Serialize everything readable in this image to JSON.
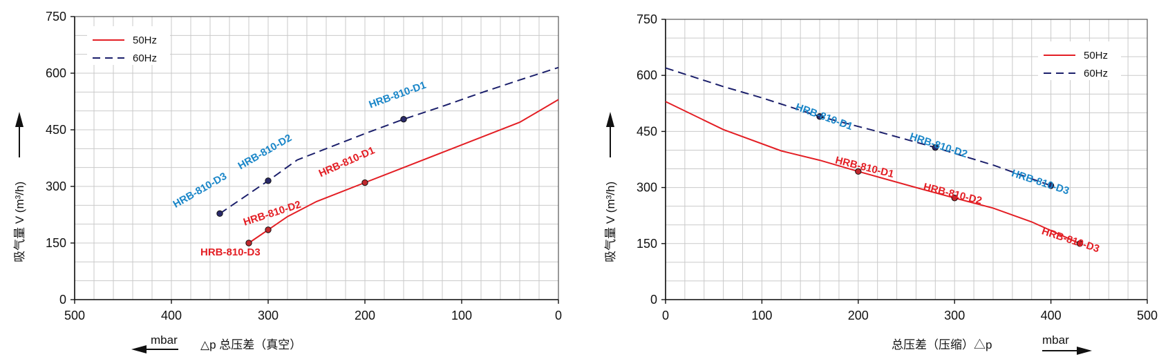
{
  "chart_data": [
    {
      "type": "line",
      "xlim": [
        500,
        0
      ],
      "ylim": [
        0,
        750
      ],
      "x_reversed": true,
      "xticks": [
        500,
        400,
        300,
        200,
        100,
        0
      ],
      "yticks": [
        0,
        150,
        300,
        450,
        600,
        750
      ],
      "ylabel": "吸气量 V (m³/h)",
      "xlabel": "△p 总压差（真空）",
      "xunit": "mbar",
      "grid": true,
      "legend_position": "top-left",
      "series": [
        {
          "name": "50Hz",
          "color": "#e31e24",
          "dash": false,
          "x": [
            320,
            300,
            280,
            250,
            200,
            160,
            120,
            80,
            40,
            20,
            0
          ],
          "y": [
            150,
            185,
            220,
            260,
            310,
            350,
            390,
            430,
            470,
            500,
            530
          ]
        },
        {
          "name": "60Hz",
          "color": "#1b1f6b",
          "dash": true,
          "x": [
            350,
            300,
            270,
            240,
            200,
            160,
            120,
            80,
            40,
            0
          ],
          "y": [
            228,
            315,
            370,
            400,
            440,
            478,
            512,
            548,
            582,
            615
          ]
        }
      ],
      "points": [
        {
          "label": "HRB-810-D3",
          "x": 350,
          "y": 228,
          "color": "#1a86c8"
        },
        {
          "label": "HRB-810-D2",
          "x": 300,
          "y": 315,
          "color": "#1a86c8"
        },
        {
          "label": "HRB-810-D1",
          "x": 160,
          "y": 478,
          "color": "#1a86c8"
        },
        {
          "label": "HRB-810-D3",
          "x": 320,
          "y": 150,
          "color": "#e31e24"
        },
        {
          "label": "HRB-810-D2",
          "x": 300,
          "y": 185,
          "color": "#e31e24"
        },
        {
          "label": "HRB-810-D1",
          "x": 200,
          "y": 310,
          "color": "#e31e24"
        }
      ]
    },
    {
      "type": "line",
      "xlim": [
        0,
        500
      ],
      "ylim": [
        0,
        750
      ],
      "x_reversed": false,
      "xticks": [
        0,
        100,
        200,
        300,
        400,
        500
      ],
      "yticks": [
        0,
        150,
        300,
        450,
        600,
        750
      ],
      "ylabel": "吸气量 V (m³/h)",
      "xlabel": "总压差（压缩）△p",
      "xunit": "mbar",
      "grid": true,
      "legend_position": "top-right",
      "series": [
        {
          "name": "50Hz",
          "color": "#e31e24",
          "dash": false,
          "x": [
            0,
            60,
            120,
            160,
            200,
            260,
            300,
            340,
            380,
            430
          ],
          "y": [
            530,
            455,
            398,
            373,
            343,
            300,
            272,
            245,
            208,
            150
          ]
        },
        {
          "name": "60Hz",
          "color": "#1b1f6b",
          "dash": true,
          "x": [
            0,
            60,
            100,
            160,
            220,
            280,
            340,
            400
          ],
          "y": [
            620,
            570,
            540,
            490,
            450,
            407,
            360,
            305
          ]
        }
      ],
      "points": [
        {
          "label": "HRB-810-D1",
          "x": 160,
          "y": 490,
          "color": "#1a86c8"
        },
        {
          "label": "HRB-810-D2",
          "x": 280,
          "y": 407,
          "color": "#1a86c8"
        },
        {
          "label": "HRB-810-D3",
          "x": 400,
          "y": 305,
          "color": "#1a86c8"
        },
        {
          "label": "HRB-810-D1",
          "x": 200,
          "y": 343,
          "color": "#e31e24"
        },
        {
          "label": "HRB-810-D2",
          "x": 300,
          "y": 272,
          "color": "#e31e24"
        },
        {
          "label": "HRB-810-D3",
          "x": 430,
          "y": 150,
          "color": "#e31e24"
        }
      ]
    }
  ]
}
